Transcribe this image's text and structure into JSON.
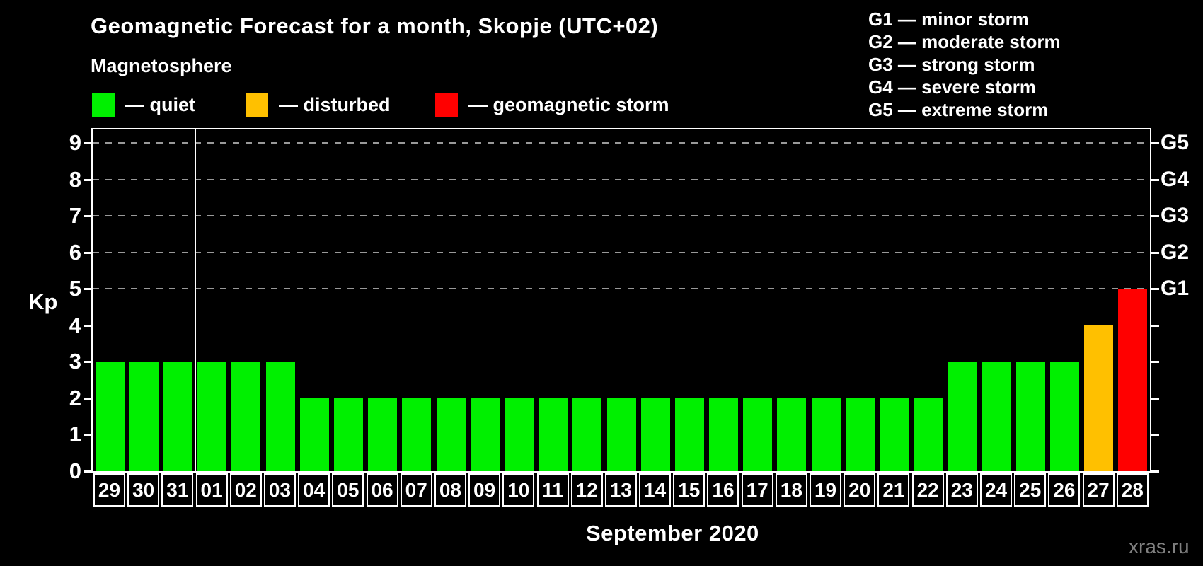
{
  "header": {
    "title": "Geomagnetic Forecast for a month, Skopje (UTC+02)",
    "subtitle": "Magnetosphere"
  },
  "magnetosphere_legend": [
    {
      "color_key": "quiet",
      "label": "— quiet"
    },
    {
      "color_key": "disturbed",
      "label": "— disturbed"
    },
    {
      "color_key": "storm",
      "label": "— geomagnetic storm"
    }
  ],
  "storm_scale_legend": [
    "G1 — minor storm",
    "G2 — moderate storm",
    "G3 — strong storm",
    "G4 — severe storm",
    "G5 — extreme storm"
  ],
  "colors": {
    "background": "#000000",
    "quiet": "#00f000",
    "disturbed": "#ffc000",
    "storm": "#ff0000",
    "grid": "#999999",
    "axis": "#ffffff",
    "watermark_text": "#808080"
  },
  "axis": {
    "y_label": "Kp",
    "y_ticks": [
      "0",
      "1",
      "2",
      "3",
      "4",
      "5",
      "6",
      "7",
      "8",
      "9"
    ],
    "right_scale": [
      {
        "label": "G1",
        "kp": 5
      },
      {
        "label": "G2",
        "kp": 6
      },
      {
        "label": "G3",
        "kp": 7
      },
      {
        "label": "G4",
        "kp": 8
      },
      {
        "label": "G5",
        "kp": 9
      }
    ],
    "x_title": "September 2020"
  },
  "watermark": "xras.ru",
  "chart_data": {
    "type": "bar",
    "title": "Geomagnetic Forecast for a month, Skopje (UTC+02)",
    "ylabel": "Kp",
    "xlabel": "September 2020",
    "ylim": [
      0,
      9.4
    ],
    "grid_on_kp": [
      5,
      6,
      7,
      8,
      9
    ],
    "legend_position": "top",
    "categories": [
      "29",
      "30",
      "31",
      "01",
      "02",
      "03",
      "04",
      "05",
      "06",
      "07",
      "08",
      "09",
      "10",
      "11",
      "12",
      "13",
      "14",
      "15",
      "16",
      "17",
      "18",
      "19",
      "20",
      "21",
      "22",
      "23",
      "24",
      "25",
      "26",
      "27",
      "28"
    ],
    "values": [
      3,
      3,
      3,
      3,
      3,
      3,
      2,
      2,
      2,
      2,
      2,
      2,
      2,
      2,
      2,
      2,
      2,
      2,
      2,
      2,
      2,
      2,
      2,
      2,
      2,
      3,
      3,
      3,
      3,
      4,
      5
    ],
    "color_rule": {
      "quiet_max_kp": 3,
      "disturbed_kp": 4,
      "storm_min_kp": 5
    },
    "month_separator_after_category": "31"
  }
}
